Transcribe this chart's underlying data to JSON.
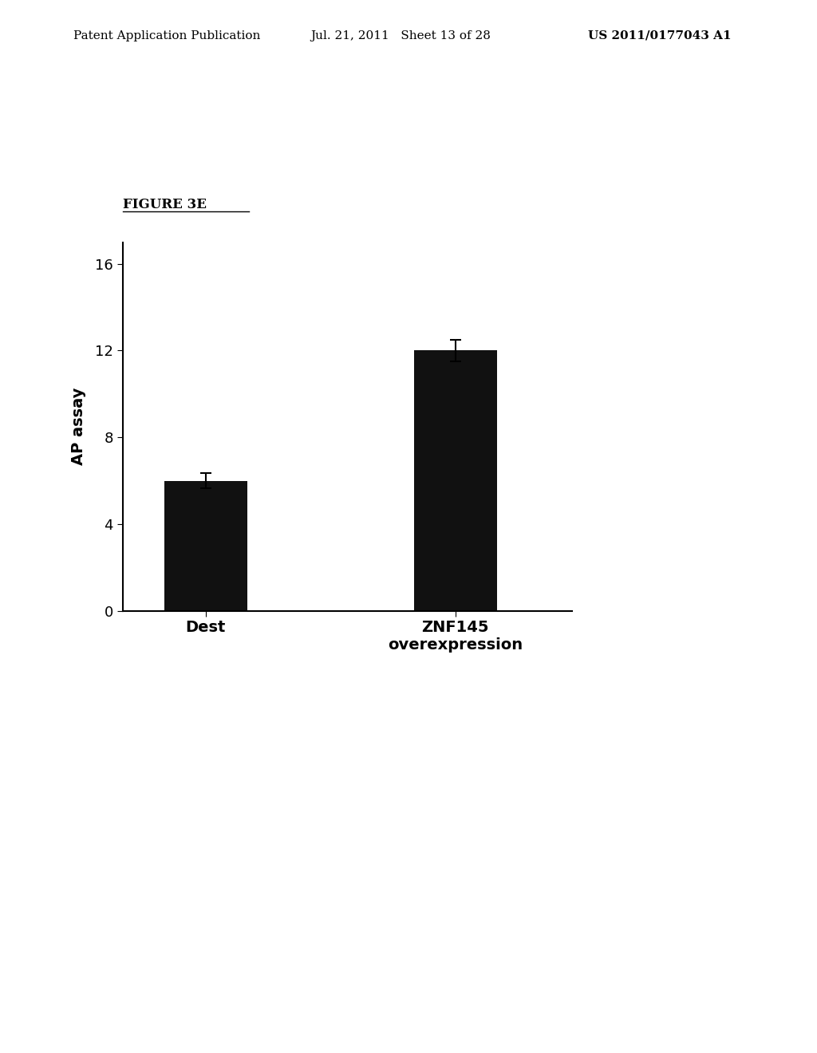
{
  "categories": [
    "Dest",
    "ZNF145\noverexpression"
  ],
  "values": [
    6.0,
    12.0
  ],
  "errors": [
    0.35,
    0.5
  ],
  "bar_color": "#111111",
  "bar_width": 0.5,
  "ylim": [
    0,
    17
  ],
  "yticks": [
    0,
    4,
    8,
    12,
    16
  ],
  "ylabel": "AP assay",
  "figure_label": "Figure 3E",
  "header_left": "Patent Application Publication",
  "header_mid": "Jul. 21, 2011   Sheet 13 of 28",
  "header_right": "US 2011/0177043 A1",
  "bg_color": "#ffffff",
  "text_color": "#000000",
  "header_fontsize": 11,
  "axis_fontsize": 14,
  "tick_fontsize": 13,
  "xlabel_fontsize": 14,
  "figure_label_fontsize": 12,
  "bar_positions": [
    1,
    2.5
  ]
}
